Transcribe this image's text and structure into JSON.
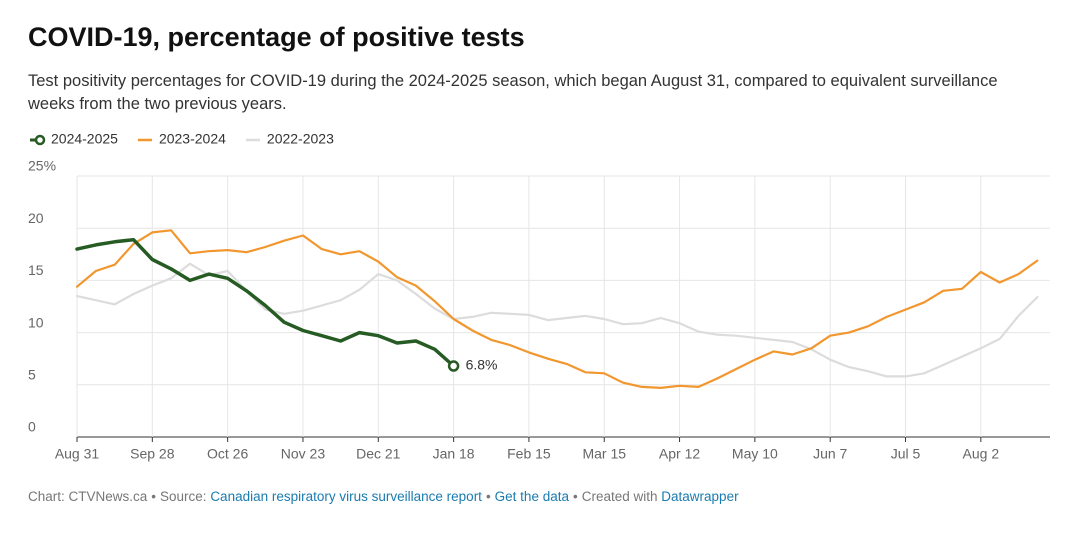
{
  "chart_data": {
    "type": "line",
    "title": "COVID-19, percentage of positive tests",
    "subtitle": "Test positivity percentages for COVID-19 during the 2024-2025 season, which began August 31, compared to equivalent surveillance weeks from the two previous years.",
    "categories": [
      "Aug 31",
      null,
      null,
      null,
      "Sep 28",
      null,
      null,
      null,
      "Oct 26",
      null,
      null,
      null,
      "Nov 23",
      null,
      null,
      null,
      "Dec 21",
      null,
      null,
      null,
      "Jan 18",
      null,
      null,
      null,
      "Feb 15",
      null,
      null,
      null,
      "Mar 15",
      null,
      null,
      null,
      "Apr 12",
      null,
      null,
      null,
      "May 10",
      null,
      null,
      null,
      "Jun 7",
      null,
      null,
      null,
      "Jul 5",
      null,
      null,
      null,
      "Aug 2",
      null,
      null,
      null
    ],
    "series": [
      {
        "name": "2024-2025",
        "color": "#265b23",
        "values": [
          18.0,
          18.4,
          18.7,
          18.9,
          17.0,
          16.1,
          15.0,
          15.6,
          15.2,
          14.0,
          12.6,
          11.0,
          10.2,
          9.7,
          9.2,
          10.0,
          9.7,
          9.0,
          9.2,
          8.4,
          6.8,
          null,
          null,
          null,
          null,
          null,
          null,
          null,
          null,
          null,
          null,
          null,
          null,
          null,
          null,
          null,
          null,
          null,
          null,
          null,
          null,
          null,
          null,
          null,
          null,
          null,
          null,
          null,
          null,
          null,
          null,
          null
        ],
        "value_labels": [
          null,
          null,
          null,
          null,
          null,
          null,
          null,
          null,
          null,
          null,
          null,
          null,
          null,
          null,
          null,
          null,
          null,
          null,
          null,
          null,
          "6.8%",
          null,
          null,
          null,
          null,
          null,
          null,
          null,
          null,
          null,
          null,
          null,
          null,
          null,
          null,
          null,
          null,
          null,
          null,
          null,
          null,
          null,
          null,
          null,
          null,
          null,
          null,
          null,
          null,
          null,
          null,
          null
        ]
      },
      {
        "name": "2023-2024",
        "color": "#f2962e",
        "values": [
          14.4,
          15.9,
          16.5,
          18.5,
          19.6,
          19.8,
          17.6,
          17.8,
          17.9,
          17.7,
          18.2,
          18.8,
          19.3,
          18.0,
          17.5,
          17.8,
          16.8,
          15.3,
          14.5,
          13.0,
          11.3,
          10.2,
          9.3,
          8.8,
          8.1,
          7.5,
          7.0,
          6.2,
          6.1,
          5.2,
          4.8,
          4.7,
          4.9,
          4.8,
          5.6,
          6.5,
          7.4,
          8.2,
          7.9,
          8.5,
          9.7,
          10.0,
          10.6,
          11.5,
          12.2,
          12.9,
          14.0,
          14.2,
          15.8,
          14.8,
          15.6,
          16.9
        ]
      },
      {
        "name": "2022-2023",
        "color": "#dcdcdc",
        "values": [
          13.5,
          13.1,
          12.7,
          13.7,
          14.5,
          15.2,
          16.6,
          15.5,
          15.9,
          14.0,
          12.2,
          11.8,
          12.1,
          12.6,
          13.1,
          14.1,
          15.6,
          15.0,
          13.7,
          12.3,
          11.3,
          11.5,
          11.9,
          11.8,
          11.7,
          11.2,
          11.4,
          11.6,
          11.3,
          10.8,
          10.9,
          11.4,
          10.9,
          10.1,
          9.8,
          9.7,
          9.5,
          9.3,
          9.1,
          8.4,
          7.4,
          6.7,
          6.3,
          5.8,
          5.8,
          6.1,
          6.9,
          7.7,
          8.5,
          9.4,
          11.6,
          13.4
        ]
      }
    ],
    "ylim": [
      0,
      25
    ],
    "yticks": [
      0,
      5,
      10,
      15,
      20,
      {
        "value": 25,
        "label": "25%"
      }
    ],
    "grid": true,
    "legend": "top-left",
    "footer": {
      "credit": "Chart: CTVNews.ca",
      "source_label": "Source:",
      "source": "Canadian respiratory virus surveillance report",
      "data_link": "Get the data",
      "created": "Created with",
      "tool": "Datawrapper"
    }
  }
}
